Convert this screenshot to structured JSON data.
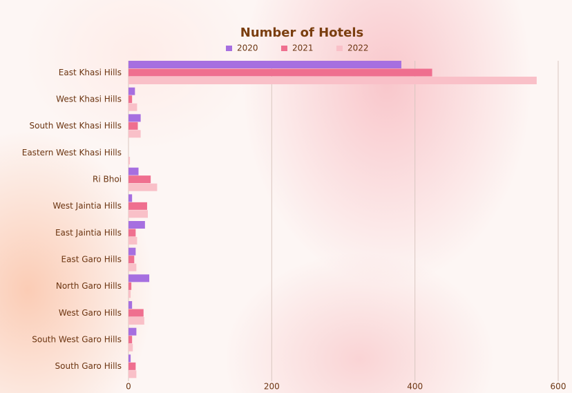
{
  "chart_data": {
    "type": "bar",
    "orientation": "horizontal",
    "title": "Number of Hotels",
    "categories": [
      "East Khasi Hills",
      "West Khasi Hills",
      "South West Khasi Hills",
      "Eastern West Khasi Hills",
      "Ri Bhoi",
      "West Jaintia Hills",
      "East Jaintia Hills",
      "East Garo Hills",
      "North Garo Hills",
      "West Garo Hills",
      "South West Garo Hills",
      "South Garo Hills"
    ],
    "series": [
      {
        "name": "2020",
        "color": "#a66fe0",
        "values": [
          381,
          9,
          17,
          0,
          14,
          5,
          23,
          10,
          29,
          5,
          11,
          3
        ]
      },
      {
        "name": "2021",
        "color": "#ef6f8f",
        "values": [
          424,
          5,
          13,
          0,
          31,
          26,
          10,
          8,
          4,
          21,
          5,
          10
        ]
      },
      {
        "name": "2022",
        "color": "#f9c0c8",
        "values": [
          570,
          12,
          17,
          2,
          40,
          27,
          12,
          11,
          3,
          22,
          6,
          11
        ]
      }
    ],
    "xlim": [
      0,
      600
    ],
    "xticks": [
      0,
      200,
      400,
      600
    ],
    "grid": true,
    "legend": "top"
  }
}
